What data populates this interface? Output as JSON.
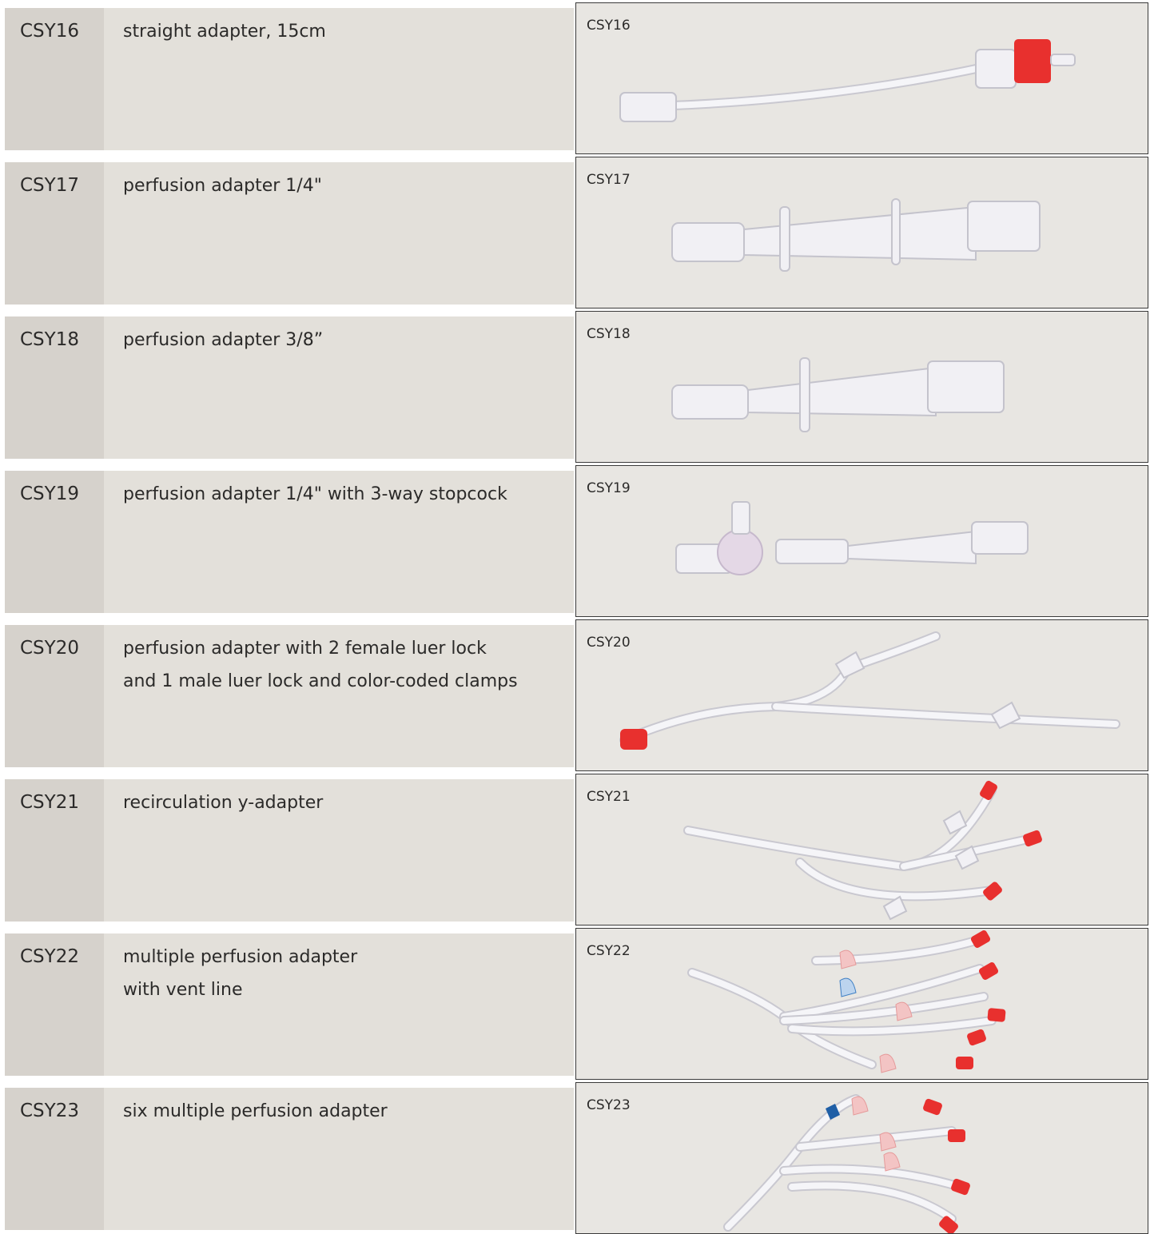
{
  "rows": [
    {
      "code": "CSY16",
      "description": [
        "straight adapter, 15cm"
      ],
      "image_label": "CSY16"
    },
    {
      "code": "CSY17",
      "description": [
        "perfusion adapter 1/4\""
      ],
      "image_label": "CSY17"
    },
    {
      "code": "CSY18",
      "description": [
        "perfusion adapter 3/8”"
      ],
      "image_label": "CSY18"
    },
    {
      "code": "CSY19",
      "description": [
        "perfusion adapter 1/4\" with 3-way stopcock"
      ],
      "image_label": "CSY19"
    },
    {
      "code": "CSY20",
      "description": [
        "perfusion adapter with 2 female luer lock",
        "and 1 male luer lock and color-coded clamps"
      ],
      "image_label": "CSY20"
    },
    {
      "code": "CSY21",
      "description": [
        "recirculation y-adapter"
      ],
      "image_label": "CSY21"
    },
    {
      "code": "CSY22",
      "description": [
        "multiple perfusion adapter",
        "with vent line"
      ],
      "image_label": "CSY22"
    },
    {
      "code": "CSY23",
      "description": [
        "six multiple perfusion adapter"
      ],
      "image_label": "CSY23"
    }
  ]
}
